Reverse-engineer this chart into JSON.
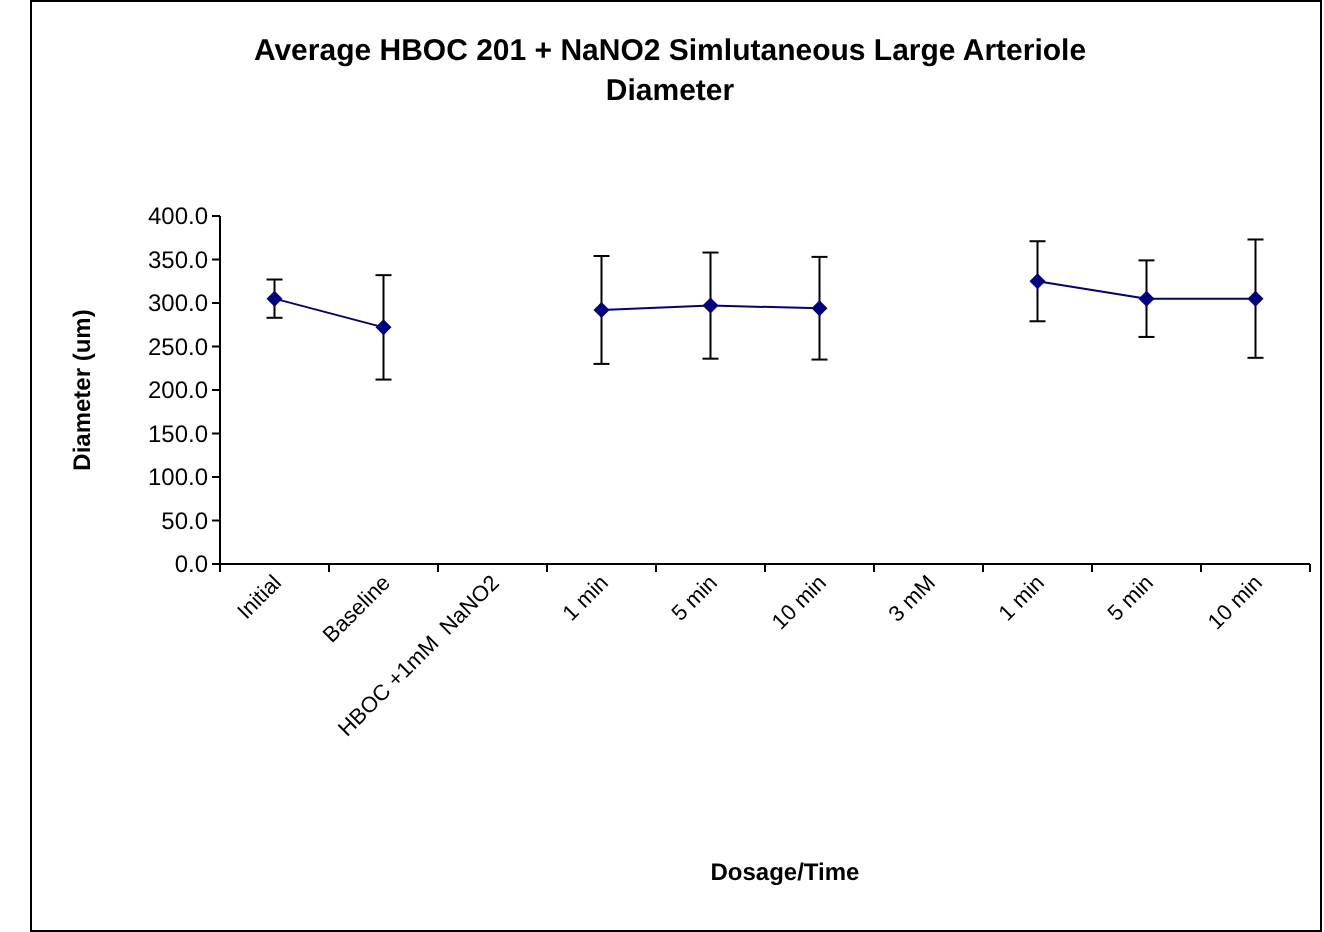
{
  "chart_data": {
    "type": "line",
    "title": "Average HBOC 201 + NaNO2 Simlutaneous Large Arteriole Diameter",
    "xlabel": "Dosage/Time",
    "ylabel": "Diameter (um)",
    "categories": [
      "Initial",
      "Baseline",
      "HBOC +1mM  NaNO2",
      "1 min",
      "5 min",
      "10 min",
      "3 mM",
      "1 min",
      "5 min",
      "10 min"
    ],
    "series": [
      {
        "color": "#000080",
        "values": [
          305,
          272,
          null,
          292,
          297,
          294,
          null,
          325,
          305,
          305
        ],
        "errors": [
          22,
          60,
          null,
          62,
          61,
          59,
          null,
          46,
          44,
          68
        ]
      }
    ],
    "ylim": [
      0,
      400
    ],
    "yticks": [
      {
        "value": 0,
        "label": "0.0"
      },
      {
        "value": 50,
        "label": "50.0"
      },
      {
        "value": 100,
        "label": "100.0"
      },
      {
        "value": 150,
        "label": "150.0"
      },
      {
        "value": 200,
        "label": "200.0"
      },
      {
        "value": 250,
        "label": "250.0"
      },
      {
        "value": 300,
        "label": "300.0"
      },
      {
        "value": 350,
        "label": "350.0"
      },
      {
        "value": 400,
        "label": "400.0"
      }
    ],
    "marker": "diamond",
    "line_style": "solid"
  }
}
